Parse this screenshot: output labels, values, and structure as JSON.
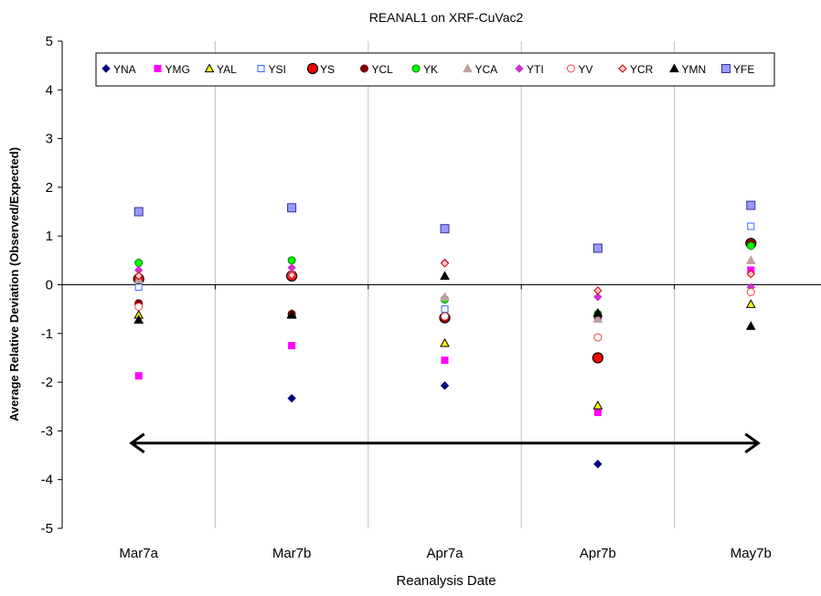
{
  "chart_data": {
    "type": "scatter",
    "title": "REANAL1 on XRF-CuVac2",
    "xlabel": "Reanalysis Date",
    "ylabel": "Average Relative Deviation (Observed/Expected)",
    "categories": [
      "Mar7a",
      "Mar7b",
      "Apr7a",
      "Apr7b",
      "May7b"
    ],
    "ylim": [
      -5,
      5
    ],
    "yticks": [
      "5",
      "4",
      "3",
      "2",
      "1",
      "0",
      "-1",
      "-2",
      "-3",
      "-4",
      "-5"
    ],
    "grid": "vertical",
    "legend_position": "top",
    "annotation": "double-headed arrow spanning Mar7a to May7b at y = -3.25",
    "arrow": {
      "y": -3.25
    },
    "series": [
      {
        "name": "YNA",
        "marker": "diamond",
        "fill": "#000080",
        "stroke": "#000080",
        "values": [
          -0.4,
          -2.33,
          -2.07,
          -3.68,
          null
        ]
      },
      {
        "name": "YMG",
        "marker": "square",
        "fill": "#FF00FF",
        "stroke": "#FF00FF",
        "values": [
          -1.87,
          -1.25,
          -1.55,
          -2.62,
          0.3
        ]
      },
      {
        "name": "YAL",
        "marker": "triangle",
        "fill": "#FFFF00",
        "stroke": "#000000",
        "values": [
          -0.62,
          -0.6,
          -1.2,
          -2.48,
          -0.4
        ]
      },
      {
        "name": "YSI",
        "marker": "square",
        "fill": "#FFFFFF",
        "stroke": "#3366FF",
        "values": [
          -0.05,
          0.2,
          -0.5,
          -0.7,
          1.2
        ]
      },
      {
        "name": "YS",
        "marker": "circle-lg",
        "fill": "#FF0000",
        "stroke": "#000000",
        "values": [
          0.12,
          0.18,
          -0.68,
          -1.5,
          0.85
        ]
      },
      {
        "name": "YCL",
        "marker": "circle",
        "fill": "#800000",
        "stroke": "#800000",
        "values": [
          -0.38,
          -0.6,
          -0.7,
          -0.65,
          0.85
        ]
      },
      {
        "name": "YK",
        "marker": "circle",
        "fill": "#00FF00",
        "stroke": "#008000",
        "values": [
          0.45,
          0.5,
          -0.3,
          -0.6,
          0.8
        ]
      },
      {
        "name": "YCA",
        "marker": "triangle",
        "fill": "#C0A0A0",
        "stroke": "#C0A0A0",
        "values": [
          0.1,
          0.25,
          -0.25,
          -0.7,
          0.5
        ]
      },
      {
        "name": "YTI",
        "marker": "diamond",
        "fill": "#CC33CC",
        "stroke": "#CC33CC",
        "values": [
          0.3,
          0.35,
          0.45,
          -0.25,
          -0.05
        ]
      },
      {
        "name": "YV",
        "marker": "circle",
        "fill": "#FFFFFF",
        "stroke": "#FF4040",
        "values": [
          -0.45,
          0.2,
          -0.65,
          -1.08,
          -0.15
        ]
      },
      {
        "name": "YCR",
        "marker": "diamond",
        "fill": "#FFCCCC",
        "stroke": "#CC0000",
        "values": [
          0.18,
          0.2,
          0.44,
          -0.12,
          0.22
        ]
      },
      {
        "name": "YMN",
        "marker": "triangle",
        "fill": "#000000",
        "stroke": "#000000",
        "values": [
          -0.72,
          -0.62,
          0.18,
          -0.58,
          -0.85
        ]
      },
      {
        "name": "YFE",
        "marker": "square-lg",
        "fill": "#9999FF",
        "stroke": "#333399",
        "values": [
          1.5,
          1.58,
          1.15,
          0.75,
          1.63
        ]
      }
    ]
  }
}
